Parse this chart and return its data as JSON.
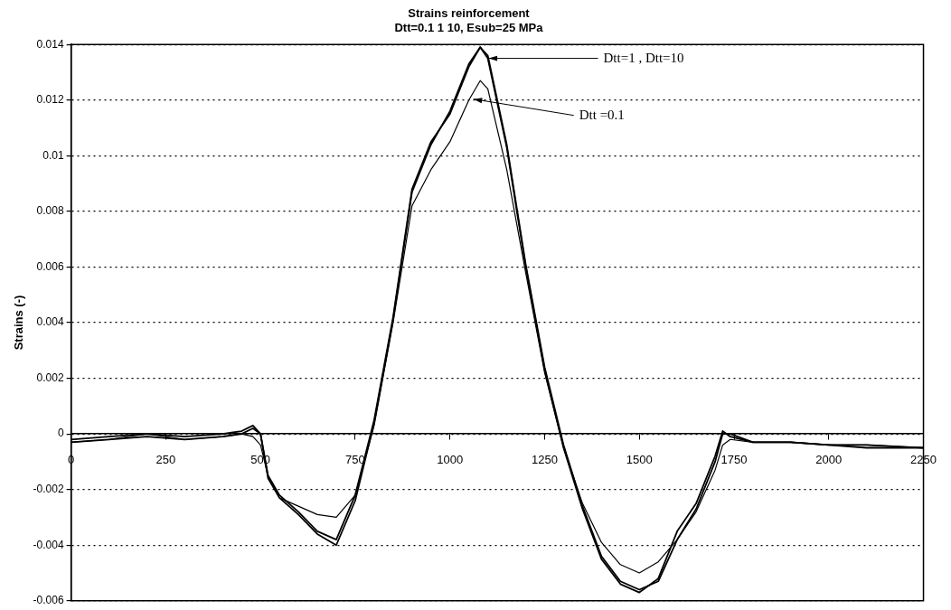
{
  "chart_data": {
    "type": "line",
    "title": "Strains reinforcement",
    "subtitle": "Dtt=0.1 1 10, Esub=25 MPa",
    "ylabel": "Strains (-)",
    "x": [
      0,
      100,
      200,
      300,
      400,
      450,
      480,
      500,
      520,
      550,
      600,
      650,
      700,
      750,
      800,
      850,
      900,
      950,
      1000,
      1050,
      1080,
      1100,
      1150,
      1200,
      1250,
      1300,
      1350,
      1400,
      1450,
      1500,
      1550,
      1600,
      1650,
      1700,
      1720,
      1740,
      1800,
      1900,
      2000,
      2100,
      2250
    ],
    "series": [
      {
        "color": "#000000",
        "values": [
          -0.0003,
          -0.0002,
          0,
          -0.0002,
          -0.0001,
          0,
          -0.0001,
          -0.0004,
          -0.0015,
          -0.0023,
          -0.0026,
          -0.0029,
          -0.003,
          -0.0022,
          0.0003,
          0.004,
          0.0082,
          0.0095,
          0.0105,
          0.012,
          0.0127,
          0.0124,
          0.0095,
          0.0058,
          0.0022,
          -0.0005,
          -0.0025,
          -0.0039,
          -0.0047,
          -0.005,
          -0.0046,
          -0.0038,
          -0.0028,
          -0.0013,
          -0.0004,
          -0.0002,
          -0.0003,
          -0.0003,
          -0.0004,
          -0.0004,
          -0.0005
        ]
      },
      {
        "color": "#000000",
        "values": [
          -0.0002,
          -0.0001,
          0,
          -0.0001,
          0,
          0.0001,
          0.0003,
          0,
          -0.0015,
          -0.0022,
          -0.0028,
          -0.0035,
          -0.0038,
          -0.0022,
          0.0005,
          0.0042,
          0.0088,
          0.0105,
          0.0115,
          0.0132,
          0.0139,
          0.0135,
          0.0103,
          0.006,
          0.0023,
          -0.0005,
          -0.0027,
          -0.0045,
          -0.0054,
          -0.0057,
          -0.0052,
          -0.0035,
          -0.0025,
          -0.0008,
          0.0001,
          -0.0001,
          -0.0003,
          -0.0003,
          -0.0004,
          -0.0005,
          -0.0005
        ]
      },
      {
        "color": "#000000",
        "values": [
          -0.0003,
          -0.0002,
          -0.0001,
          -0.0002,
          -0.0001,
          0,
          0.0002,
          0,
          -0.0016,
          -0.0023,
          -0.0029,
          -0.0036,
          -0.004,
          -0.0024,
          0.0004,
          0.0041,
          0.0087,
          0.0104,
          0.0116,
          0.0133,
          0.0139,
          0.0136,
          0.0104,
          0.0061,
          0.0024,
          -0.0004,
          -0.0026,
          -0.0044,
          -0.0053,
          -0.0056,
          -0.0053,
          -0.0038,
          -0.0027,
          -0.001,
          0,
          0,
          -0.0003,
          -0.0003,
          -0.0004,
          -0.0004,
          -0.0005
        ]
      }
    ],
    "xlim": [
      0,
      2250
    ],
    "xticks": [
      0,
      250,
      500,
      750,
      1000,
      1250,
      1500,
      1750,
      2000,
      2250
    ],
    "ylim": [
      -0.006,
      0.014
    ],
    "yticks": [
      -0.006,
      -0.004,
      -0.002,
      0,
      0.002,
      0.004,
      0.006,
      0.008,
      0.01,
      0.012,
      0.014
    ],
    "grid": "y",
    "legend": false,
    "marker": "none",
    "line_style": "solid",
    "annotations": [
      {
        "text": "Dtt=1 , Dtt=10",
        "x": 1095,
        "y": 0.0135
      },
      {
        "text": "Dtt =0.1",
        "x": 1055,
        "y": 0.0121
      }
    ]
  }
}
